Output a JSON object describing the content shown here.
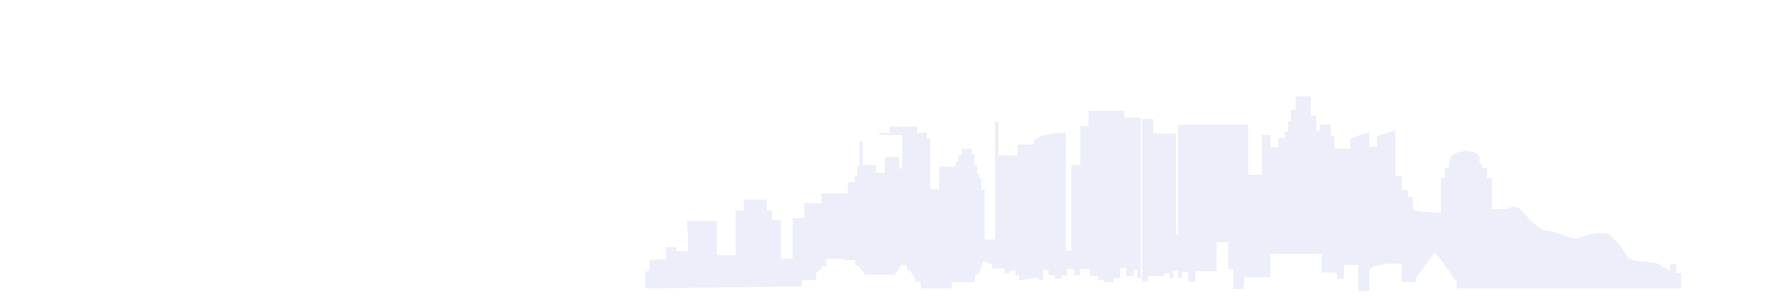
{
  "image": {
    "kind": "decorative-city-skyline-silhouette",
    "background_color": "#ffffff",
    "fill_color": "#eceef9"
  }
}
